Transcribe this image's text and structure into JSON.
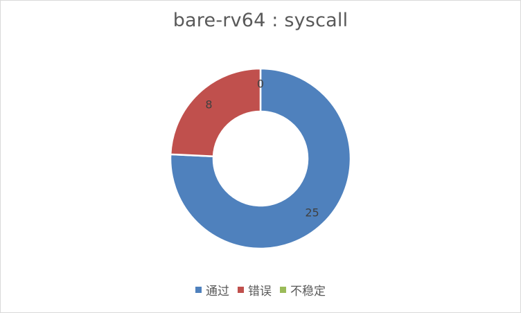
{
  "chart_data": {
    "type": "pie",
    "variant": "doughnut",
    "title": "bare-rv64 : syscall",
    "categories": [
      "通过",
      "错误",
      "不稳定"
    ],
    "values": [
      25,
      8,
      0
    ],
    "colors": [
      "#4f81bd",
      "#c0504d",
      "#9bbb59"
    ],
    "data_labels": [
      "25",
      "8",
      "0"
    ],
    "legend_position": "bottom",
    "start_angle_deg": 0,
    "direction": "clockwise"
  }
}
